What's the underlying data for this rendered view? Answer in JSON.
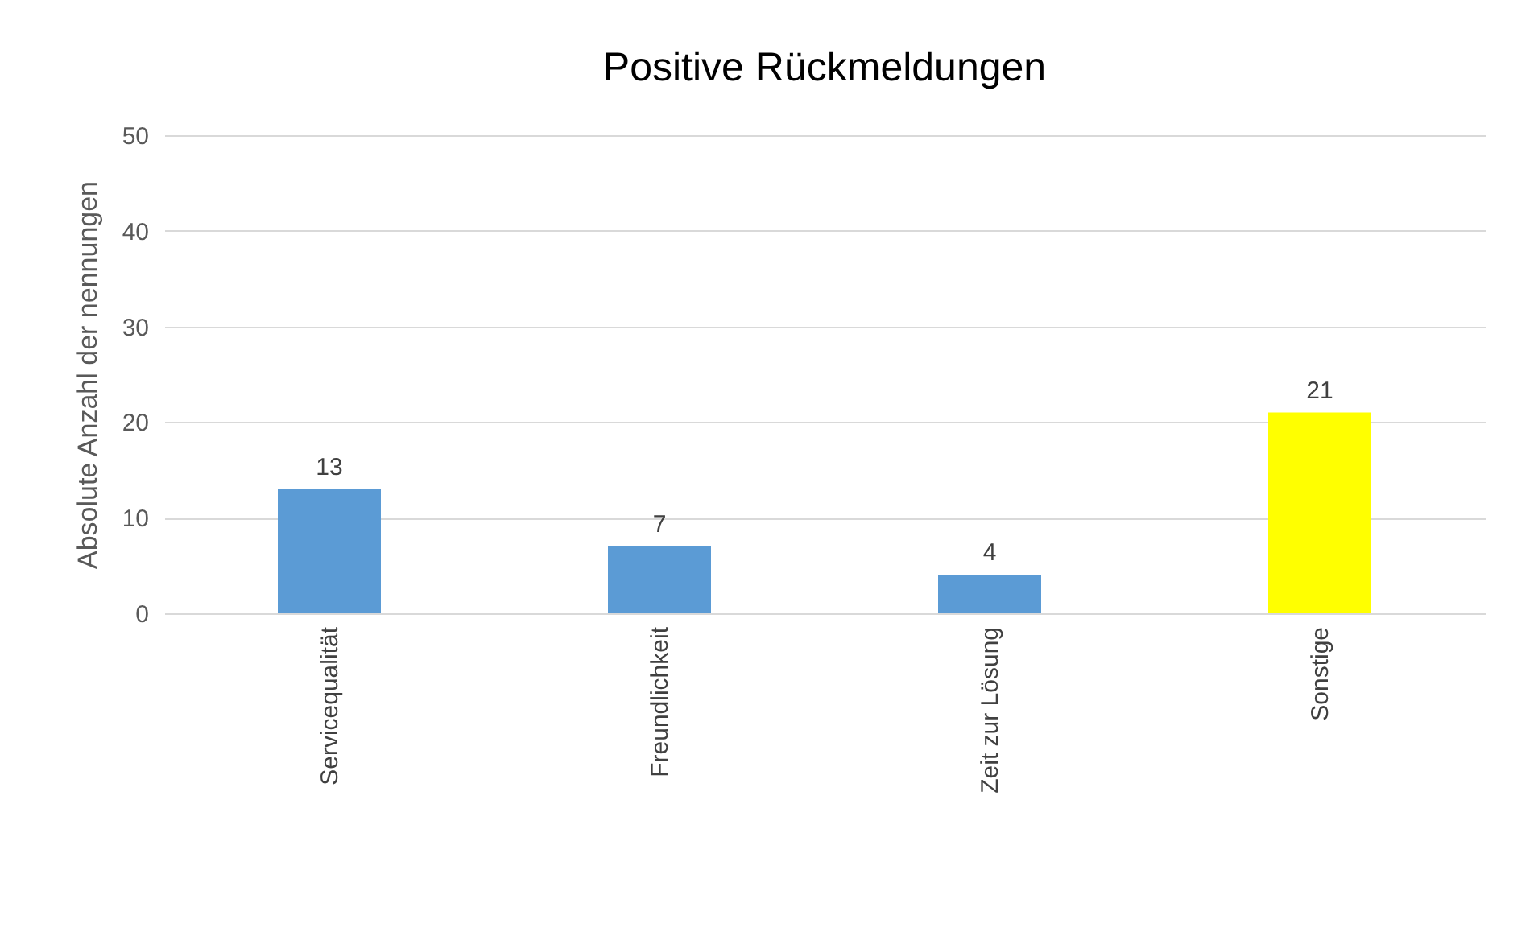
{
  "chart_data": {
    "type": "bar",
    "title": "Positive Rückmeldungen",
    "ylabel": "Absolute Anzahl der nennungen",
    "categories": [
      "Servicequalität",
      "Freundlichkeit",
      "Zeit zur Lösung",
      "Sonstige"
    ],
    "values": [
      13,
      7,
      4,
      21
    ],
    "colors": [
      "#5b9bd5",
      "#5b9bd5",
      "#5b9bd5",
      "#ffff00"
    ],
    "ylim": [
      0,
      50
    ],
    "yticks": [
      0,
      10,
      20,
      30,
      40,
      50
    ],
    "grid": "y",
    "data_labels": true
  }
}
